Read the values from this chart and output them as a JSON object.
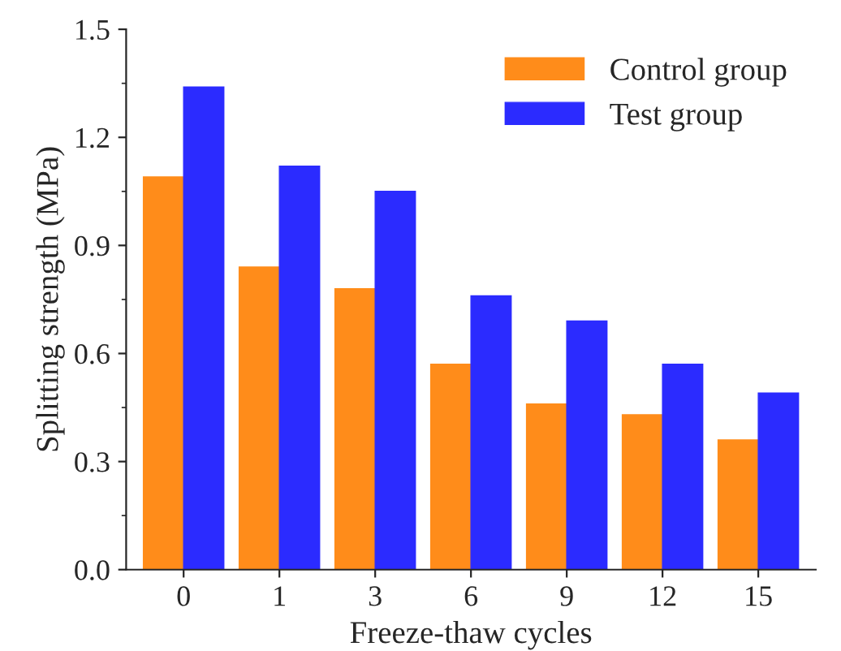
{
  "chart_data": {
    "type": "bar",
    "xlabel": "Freeze-thaw cycles",
    "ylabel": "Splitting strength (MPa)",
    "categories": [
      "0",
      "1",
      "3",
      "6",
      "9",
      "12",
      "15"
    ],
    "series": [
      {
        "name": "Control group",
        "color": "#ff8c1a",
        "values": [
          1.09,
          0.84,
          0.78,
          0.57,
          0.46,
          0.43,
          0.36
        ]
      },
      {
        "name": "Test group",
        "color": "#2b2bff",
        "values": [
          1.34,
          1.12,
          1.05,
          0.76,
          0.69,
          0.57,
          0.49
        ]
      }
    ],
    "ylim": [
      0,
      1.5
    ],
    "yticks": [
      {
        "value": 0,
        "label": "0.0"
      },
      0.3,
      0.6,
      0.9,
      1.2,
      1.5
    ],
    "legend": "top right",
    "grid": false
  }
}
